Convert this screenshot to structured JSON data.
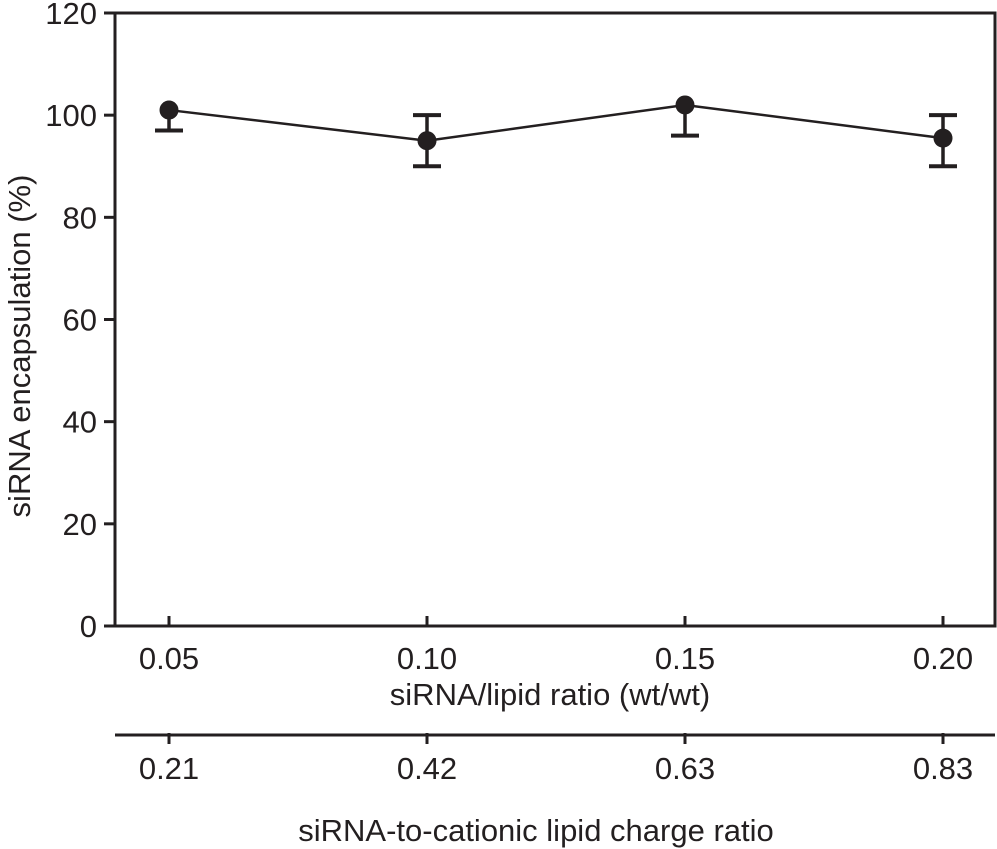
{
  "figure": {
    "background": "#ffffff",
    "ink_color": "#231f20"
  },
  "chart_data": {
    "type": "line",
    "title": "",
    "grid": false,
    "legend": "none",
    "x_axis": {
      "label": "siRNA/lipid ratio (wt/wt)",
      "ticks": [
        "0.05",
        "0.10",
        "0.15",
        "0.20"
      ]
    },
    "y_axis": {
      "label": "siRNA encapsulation (%)",
      "ticks": [
        0,
        20,
        40,
        60,
        80,
        100,
        120
      ],
      "ylim": [
        0,
        120
      ]
    },
    "secondary_x_axis": {
      "label": "siRNA-to-cationic lipid charge ratio",
      "ticks": [
        "0.21",
        "0.42",
        "0.63",
        "0.83"
      ]
    },
    "series": [
      {
        "name": "siRNA encapsulation",
        "marker": "filled-circle",
        "line_style": "solid",
        "color": "#231f20",
        "points": [
          {
            "x": 0.05,
            "charge_ratio": 0.21,
            "y": 101,
            "err_up": 0,
            "err_down": 4
          },
          {
            "x": 0.1,
            "charge_ratio": 0.42,
            "y": 95,
            "err_up": 5,
            "err_down": 5
          },
          {
            "x": 0.15,
            "charge_ratio": 0.63,
            "y": 102,
            "err_up": 0,
            "err_down": 6
          },
          {
            "x": 0.2,
            "charge_ratio": 0.83,
            "y": 95.5,
            "err_up": 4.5,
            "err_down": 5.5
          }
        ]
      }
    ]
  }
}
